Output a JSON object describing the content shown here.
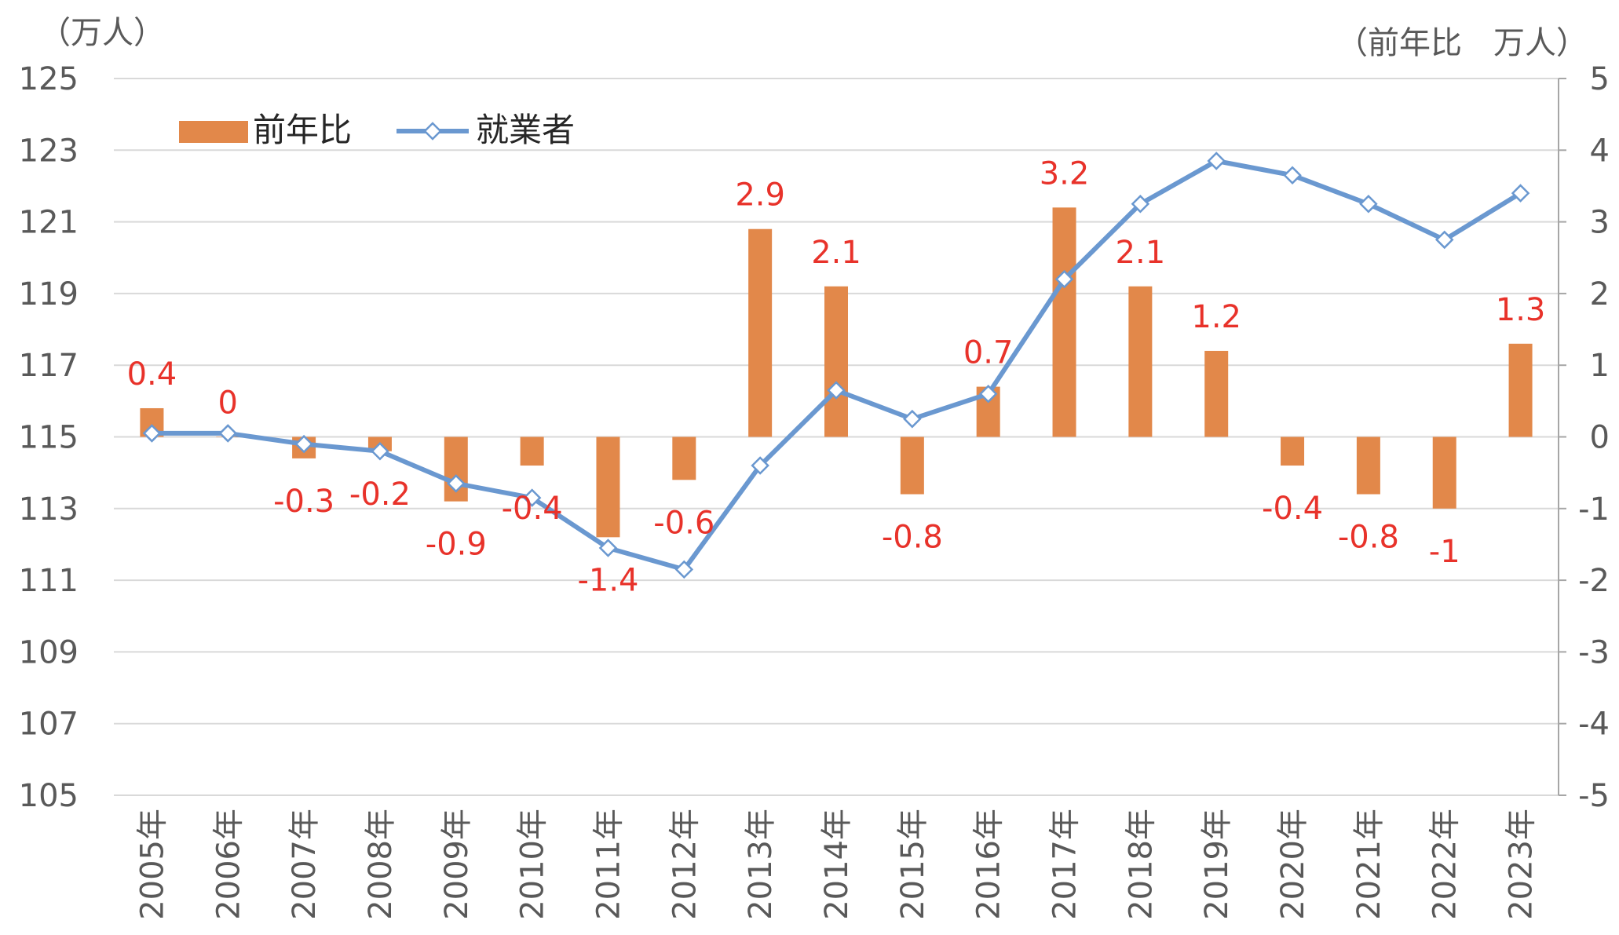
{
  "chart_data": {
    "type": "bar+line",
    "left_axis_unit": "（万人）",
    "right_axis_unit": "（前年比　万人）",
    "categories": [
      "2005年",
      "2006年",
      "2007年",
      "2008年",
      "2009年",
      "2010年",
      "2011年",
      "2012年",
      "2013年",
      "2014年",
      "2015年",
      "2016年",
      "2017年",
      "2018年",
      "2019年",
      "2020年",
      "2021年",
      "2022年",
      "2023年"
    ],
    "left_ticks": [
      "125",
      "123",
      "121",
      "119",
      "117",
      "115",
      "113",
      "111",
      "109",
      "107",
      "105"
    ],
    "right_ticks": [
      "5",
      "4",
      "3",
      "2",
      "1",
      "0",
      "-1",
      "-2",
      "-3",
      "-4",
      "-5"
    ],
    "ylim_left": [
      105,
      125
    ],
    "ylim_right": [
      -5,
      5
    ],
    "series": [
      {
        "name": "前年比",
        "type": "bar",
        "axis": "right",
        "color": "#e2884a",
        "values": [
          0.4,
          0,
          -0.3,
          -0.2,
          -0.9,
          -0.4,
          -1.4,
          -0.6,
          2.9,
          2.1,
          -0.8,
          0.7,
          3.2,
          2.1,
          1.2,
          -0.4,
          -0.8,
          -1,
          1.3
        ],
        "labels": [
          "0.4",
          "0",
          "-0.3",
          "-0.2",
          "-0.9",
          "-0.4",
          "-1.4",
          "-0.6",
          "2.9",
          "2.1",
          "-0.8",
          "0.7",
          "3.2",
          "2.1",
          "1.2",
          "-0.4",
          "-0.8",
          "-1",
          "1.3"
        ]
      },
      {
        "name": "就業者",
        "type": "line",
        "axis": "left",
        "color": "#6a98d0",
        "values": [
          115.1,
          115.1,
          114.8,
          114.6,
          113.7,
          113.3,
          111.9,
          111.3,
          114.2,
          116.3,
          115.5,
          116.2,
          119.4,
          121.5,
          122.7,
          122.3,
          121.5,
          120.5,
          121.8
        ]
      }
    ],
    "legend": {
      "position": "top-left",
      "items": [
        {
          "label": "前年比",
          "kind": "bar"
        },
        {
          "label": "就業者",
          "kind": "line"
        }
      ]
    },
    "grid": true
  }
}
